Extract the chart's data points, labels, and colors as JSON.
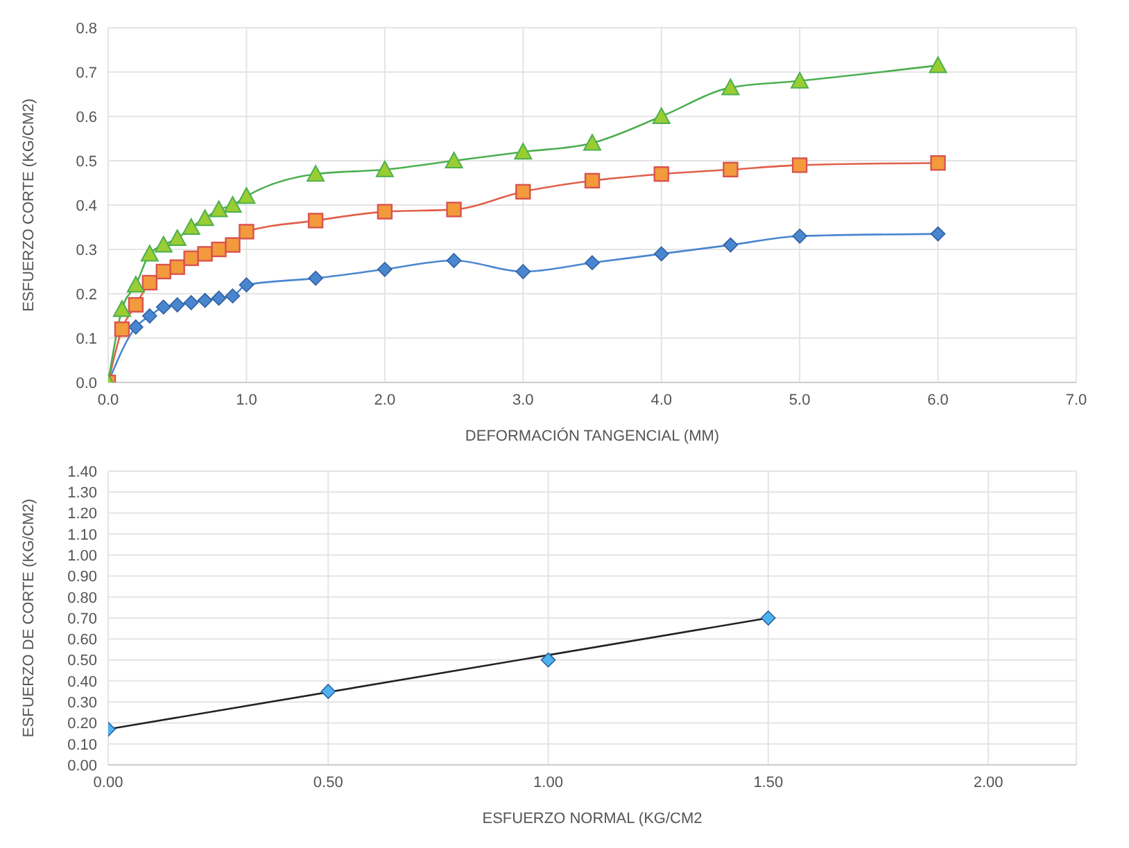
{
  "chart_data": [
    {
      "type": "line",
      "xlabel": "DEFORMACIÓN TANGENCIAL (MM)",
      "ylabel": "ESFUERZO CORTE (KG/CM2)",
      "xlim": [
        0,
        7
      ],
      "xticks": [
        {
          "value": 0,
          "label": "0.0"
        },
        {
          "value": 1,
          "label": "1.0"
        },
        {
          "value": 2,
          "label": "2.0"
        },
        {
          "value": 3,
          "label": "3.0"
        },
        {
          "value": 4,
          "label": "4.0"
        },
        {
          "value": 5,
          "label": "5.0"
        },
        {
          "value": 6,
          "label": "6.0"
        },
        {
          "value": 7,
          "label": "7.0"
        }
      ],
      "ylim": [
        0,
        0.8
      ],
      "yticks": [
        {
          "value": 0,
          "label": "0.0"
        },
        0.1,
        0.2,
        0.3,
        0.4,
        0.5,
        0.6,
        0.7,
        0.8
      ],
      "grid": true,
      "x": [
        0,
        0.1,
        0.2,
        0.3,
        0.4,
        0.5,
        0.6,
        0.7,
        0.8,
        0.9,
        1.0,
        1.5,
        2,
        2.5,
        3,
        3.5,
        4,
        4.5,
        5,
        6
      ],
      "series": [
        {
          "color": "#4a86d0",
          "marker": "diamond",
          "x": [
            0,
            0.2,
            0.3,
            0.4,
            0.5,
            0.6,
            0.7,
            0.8,
            0.9,
            1.0,
            1.5,
            2,
            2.5,
            3,
            3.5,
            4,
            4.5,
            5,
            6
          ],
          "values": [
            0,
            0.125,
            0.15,
            0.17,
            0.175,
            0.18,
            0.185,
            0.19,
            0.195,
            0.22,
            0.235,
            0.255,
            0.275,
            0.25,
            0.27,
            0.29,
            0.31,
            0.33,
            0.335
          ]
        },
        {
          "color": "#f39a3c",
          "marker": "square",
          "values": [
            0,
            0.12,
            0.175,
            0.225,
            0.25,
            0.26,
            0.28,
            0.29,
            0.3,
            0.31,
            0.34,
            0.365,
            0.385,
            0.39,
            0.43,
            0.455,
            0.47,
            0.48,
            0.49,
            0.495
          ]
        },
        {
          "color": "#9acd32",
          "marker": "triangle",
          "values": [
            0,
            0.165,
            0.22,
            0.29,
            0.31,
            0.325,
            0.35,
            0.37,
            0.39,
            0.4,
            0.42,
            0.47,
            0.48,
            0.5,
            0.52,
            0.54,
            0.6,
            0.665,
            0.68,
            0.715
          ]
        }
      ]
    },
    {
      "type": "scatter",
      "xlabel": "ESFUERZO NORMAL (KG/CM2",
      "ylabel": "ESFUERZO DE CORTE (KG/CM2)",
      "xlim": [
        0,
        2.2
      ],
      "xticks": [
        {
          "value": 0,
          "label": "0.00"
        },
        {
          "value": 0.5,
          "label": "0.50"
        },
        {
          "value": 1,
          "label": "1.00"
        },
        {
          "value": 1.5,
          "label": "1.50"
        },
        {
          "value": 2,
          "label": "2.00"
        }
      ],
      "ylim": [
        0,
        1.4
      ],
      "yticks": [
        {
          "value": 0,
          "label": "0.00"
        },
        {
          "value": 0.1,
          "label": "0.10"
        },
        {
          "value": 0.2,
          "label": "0.20"
        },
        {
          "value": 0.3,
          "label": "0.30"
        },
        {
          "value": 0.4,
          "label": "0.40"
        },
        {
          "value": 0.5,
          "label": "0.50"
        },
        {
          "value": 0.6,
          "label": "0.60"
        },
        {
          "value": 0.7,
          "label": "0.70"
        },
        {
          "value": 0.8,
          "label": "0.80"
        },
        {
          "value": 0.9,
          "label": "0.90"
        },
        {
          "value": 1,
          "label": "1.00"
        },
        {
          "value": 1.1,
          "label": "1.10"
        },
        {
          "value": 1.2,
          "label": "1.20"
        },
        {
          "value": 1.3,
          "label": "1.30"
        },
        {
          "value": 1.4,
          "label": "1.40"
        }
      ],
      "grid": true,
      "x": [
        0,
        0.5,
        1,
        1.5
      ],
      "series": [
        {
          "color": "#4db3ee",
          "marker": "diamond",
          "values": [
            0.17,
            0.35,
            0.5,
            0.7
          ]
        },
        {
          "type": "line",
          "color": "#222222",
          "marker": "none",
          "x": [
            0,
            1.5
          ],
          "values": [
            0.17,
            0.7
          ]
        }
      ]
    }
  ]
}
